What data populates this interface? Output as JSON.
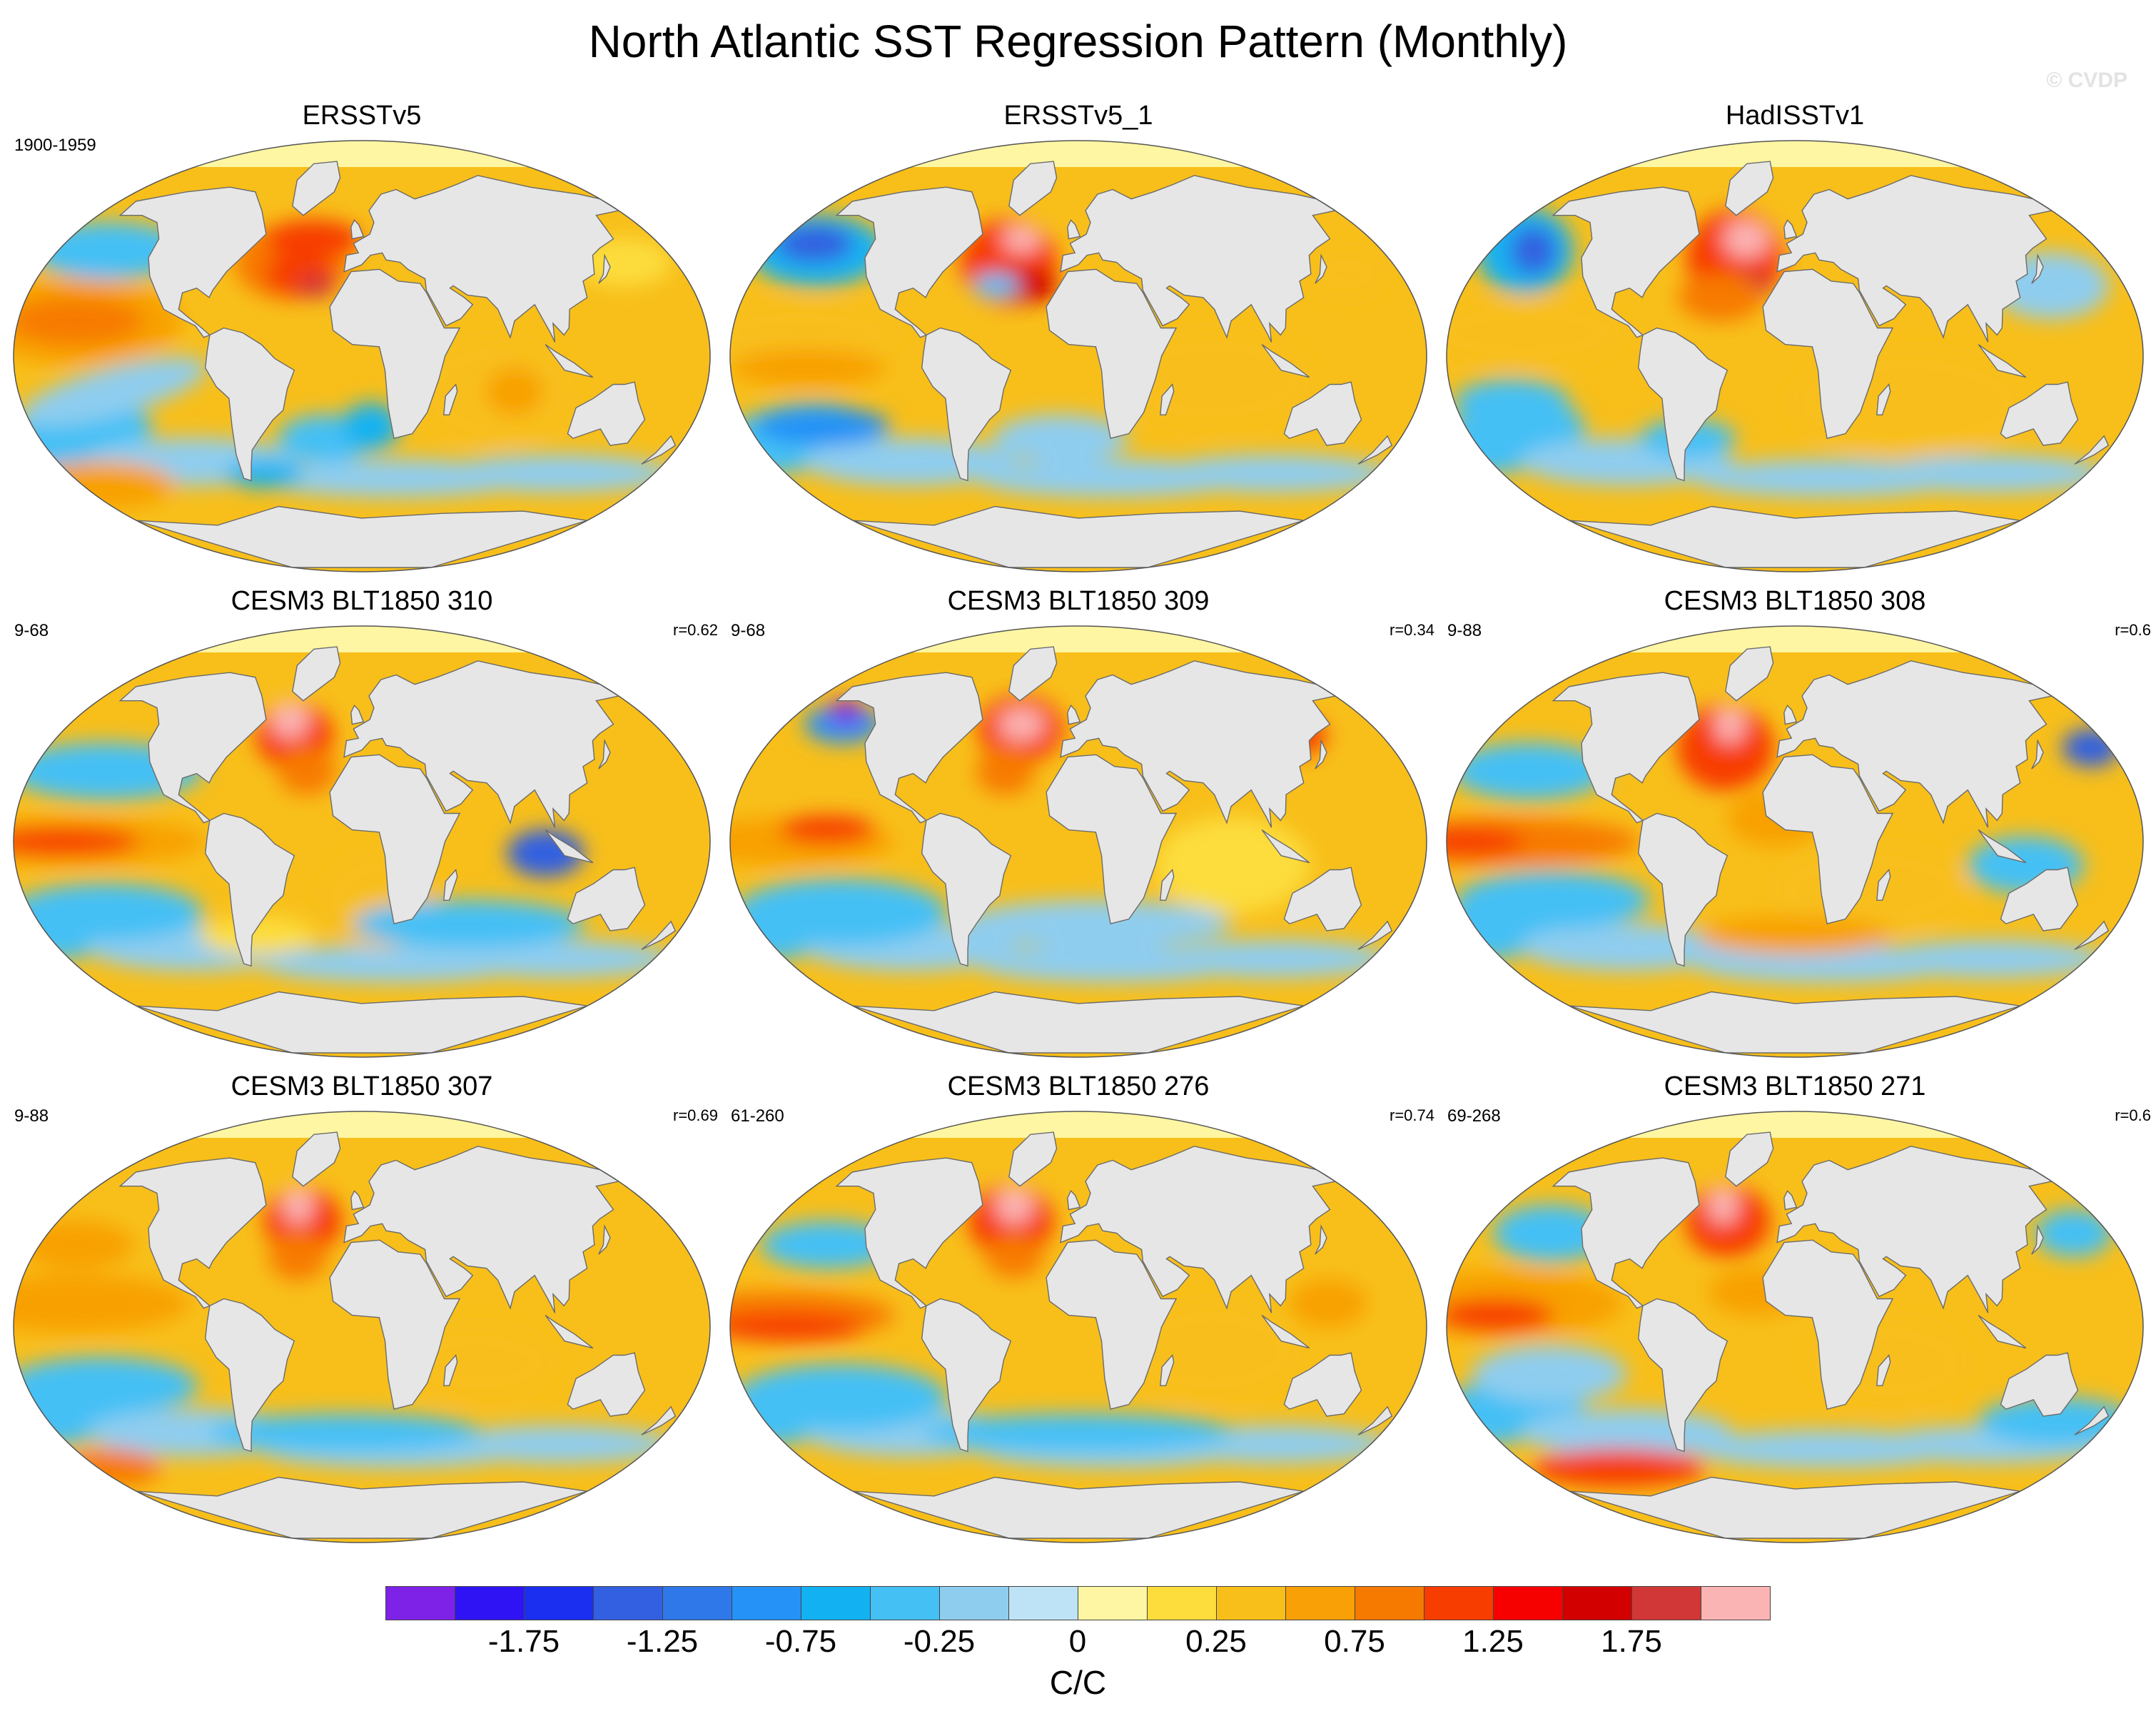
{
  "title": "North Atlantic SST Regression Pattern (Monthly)",
  "watermark": "© CVDP",
  "panels": [
    {
      "title": "ERSSTv5",
      "period": "1900-1959",
      "r": "",
      "pattern": "obs_a"
    },
    {
      "title": "ERSSTv5_1",
      "period": "",
      "r": "",
      "pattern": "obs_b"
    },
    {
      "title": "HadISSTv1",
      "period": "",
      "r": "",
      "pattern": "obs_c"
    },
    {
      "title": "CESM3 BLT1850 310",
      "period": "9-68",
      "r": "r=0.62",
      "pattern": "m310"
    },
    {
      "title": "CESM3 BLT1850 309",
      "period": "9-68",
      "r": "r=0.34",
      "pattern": "m309"
    },
    {
      "title": "CESM3 BLT1850 308",
      "period": "9-88",
      "r": "r=0.6",
      "pattern": "m308"
    },
    {
      "title": "CESM3 BLT1850 307",
      "period": "9-88",
      "r": "r=0.69",
      "pattern": "m307"
    },
    {
      "title": "CESM3 BLT1850 276",
      "period": "61-260",
      "r": "r=0.74",
      "pattern": "m276"
    },
    {
      "title": "CESM3 BLT1850 271",
      "period": "69-268",
      "r": "r=0.6",
      "pattern": "m271"
    }
  ],
  "colorbar": {
    "colors": [
      "#7f22e8",
      "#3013f5",
      "#1a2ff0",
      "#3360e0",
      "#2f78ea",
      "#2492f6",
      "#12b2f2",
      "#44c0f5",
      "#8fcdef",
      "#bfe3f6",
      "#fef6a2",
      "#fcdd3c",
      "#f8bf1a",
      "#f8a006",
      "#f77a00",
      "#f73d00",
      "#f70000",
      "#d30000",
      "#d23737",
      "#fbb4b4"
    ],
    "labels": [
      "-1.75",
      "-1.25",
      "-0.75",
      "-0.25",
      "0",
      "0.25",
      "0.75",
      "1.25",
      "1.75"
    ],
    "units": "C/C"
  }
}
